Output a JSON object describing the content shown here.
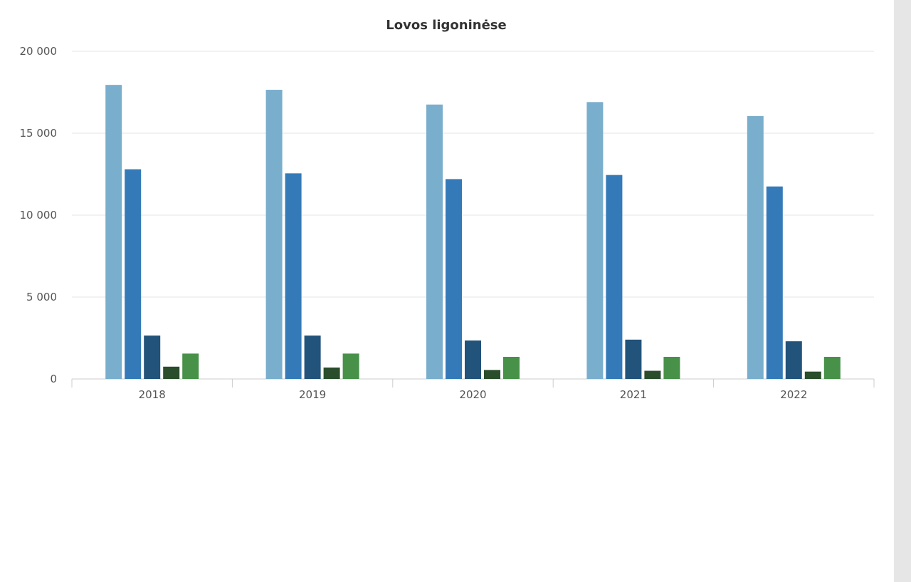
{
  "chart_data": {
    "type": "bar",
    "title": "Lovos ligoninėse",
    "xlabel": "",
    "ylabel": "",
    "ylim": [
      0,
      20000
    ],
    "yticks": [
      0,
      5000,
      10000,
      15000,
      20000
    ],
    "ytick_labels": [
      "0",
      "5 000",
      "10 000",
      "15 000",
      "20 000"
    ],
    "categories": [
      "2018",
      "2019",
      "2020",
      "2021",
      "2022"
    ],
    "grid": true,
    "legend": "none",
    "series": [
      {
        "color": "#7aaecd",
        "values": [
          17950,
          17650,
          16750,
          16900,
          16050
        ]
      },
      {
        "color": "#357ab8",
        "values": [
          12800,
          12550,
          12200,
          12450,
          11750
        ]
      },
      {
        "color": "#22537a",
        "values": [
          2650,
          2650,
          2350,
          2400,
          2300
        ]
      },
      {
        "color": "#2a4e2b",
        "values": [
          750,
          700,
          550,
          500,
          450
        ]
      },
      {
        "color": "#479149",
        "values": [
          1550,
          1550,
          1350,
          1350,
          1350
        ]
      }
    ]
  },
  "colors": {
    "grid": "#e6e6e6",
    "axis": "#cccccc",
    "scrollbar": "#e6e6e6"
  }
}
